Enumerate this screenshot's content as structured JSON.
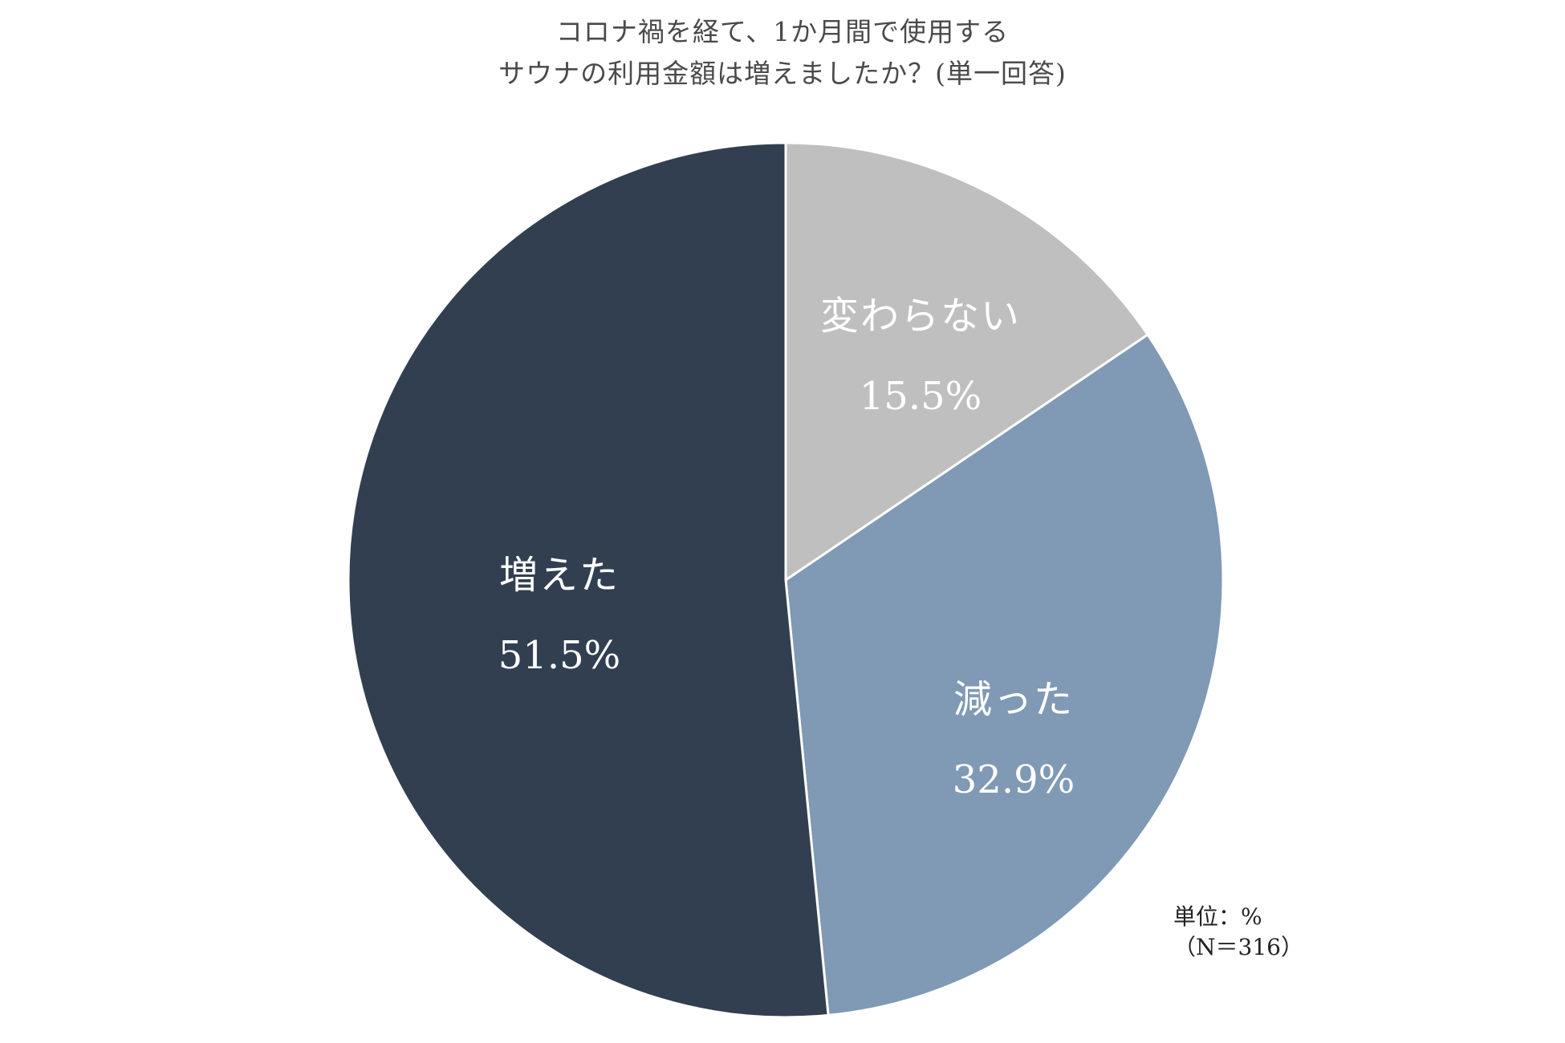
{
  "chart_data": {
    "type": "pie",
    "title": "コロナ禍を経て、1か月間で使用する",
    "subtitle": "サウナの利用金額は増えましたか？(単一回答)",
    "slices": [
      {
        "label": "変わらない",
        "value": 15.5,
        "value_text": "15.5%",
        "color": "#bfbfbf"
      },
      {
        "label": "減った",
        "value": 32.9,
        "value_text": "32.9%",
        "color": "#8099b4"
      },
      {
        "label": "増えた",
        "value": 51.5,
        "value_text": "51.5%",
        "color": "#323f50"
      }
    ],
    "start_angle": "12 o'clock",
    "direction": "clockwise",
    "unit_note": "単位：%",
    "sample_note": "（N＝316）",
    "legend": "none"
  }
}
